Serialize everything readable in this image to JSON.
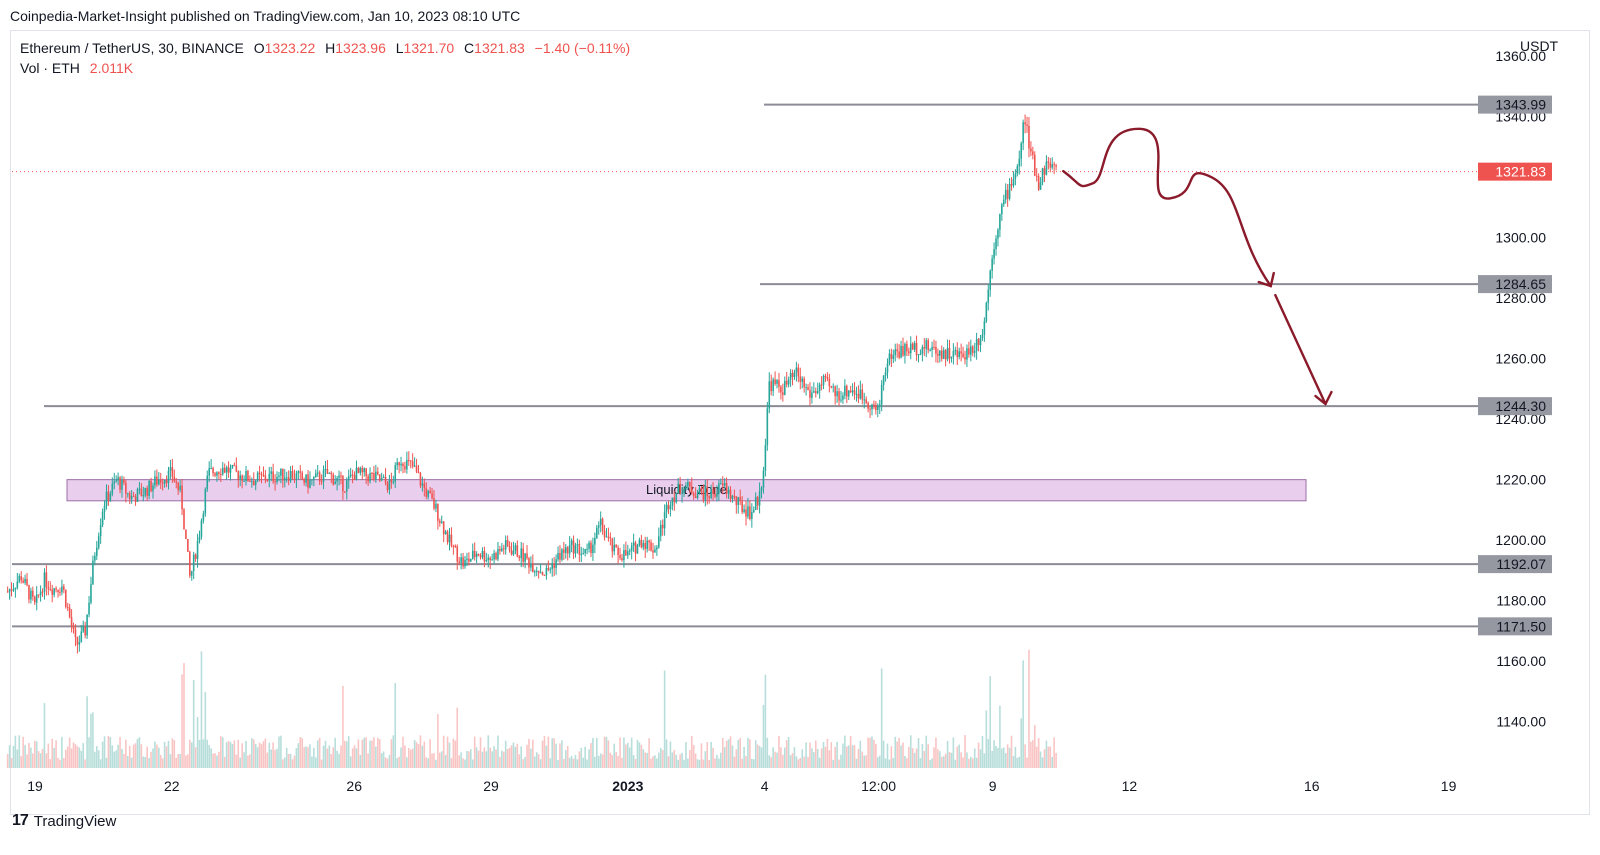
{
  "publisher_line": "Coinpedia-Market-Insight published on TradingView.com, Jan 10, 2023 08:10 UTC",
  "legend": {
    "symbol": "Ethereum / TetherUS, 30, BINANCE",
    "open_label": "O",
    "open": "1323.22",
    "high_label": "H",
    "high": "1323.96",
    "low_label": "L",
    "low": "1321.70",
    "close_label": "C",
    "close": "1321.83",
    "change": "−1.40 (−0.11%)",
    "vol_label": "Vol · ETH",
    "vol_value": "2.011K"
  },
  "currency": "USDT",
  "footer": {
    "brand": "TradingView"
  },
  "colors": {
    "up": "#26a69a",
    "down": "#ef5350",
    "line": "#8c8c96",
    "zone": "#e1bee7",
    "arrow": "#8b1a2b"
  },
  "chart_data": {
    "type": "candlestick",
    "title": "Ethereum / TetherUS, 30, BINANCE",
    "ylim": [
      1124,
      1368
    ],
    "y_ticks": [
      "1360.00",
      "1340.00",
      "1300.00",
      "1280.00",
      "1260.00",
      "1240.00",
      "1220.00",
      "1200.00",
      "1180.00",
      "1160.00",
      "1140.00"
    ],
    "x_ticks": [
      {
        "label": "19",
        "day": 0
      },
      {
        "label": "22",
        "day": 3
      },
      {
        "label": "26",
        "day": 7
      },
      {
        "label": "29",
        "day": 10
      },
      {
        "label": "2023",
        "day": 13
      },
      {
        "label": "4",
        "day": 16
      },
      {
        "label": "12:00",
        "day": 18.5
      },
      {
        "label": "9",
        "day": 21
      },
      {
        "label": "12",
        "day": 24
      },
      {
        "label": "16",
        "day": 28
      },
      {
        "label": "19",
        "day": 31
      }
    ],
    "levels": [
      {
        "label": "1343.99",
        "price": 1343.99
      },
      {
        "label": "1284.65",
        "price": 1284.65
      },
      {
        "label": "1244.30",
        "price": 1244.3
      },
      {
        "label": "1192.07",
        "price": 1192.07
      },
      {
        "label": "1171.50",
        "price": 1171.5
      }
    ],
    "last_price": {
      "label": "1321.83",
      "price": 1321.83
    },
    "zone": {
      "label": "Liquidity Zone",
      "low": 1213,
      "high": 1220
    },
    "price_path": [
      [
        -0.6,
        1183
      ],
      [
        -0.3,
        1188
      ],
      [
        0.0,
        1178
      ],
      [
        0.2,
        1187
      ],
      [
        0.4,
        1184
      ],
      [
        0.6,
        1185
      ],
      [
        0.9,
        1165
      ],
      [
        1.1,
        1170
      ],
      [
        1.3,
        1195
      ],
      [
        1.5,
        1212
      ],
      [
        1.8,
        1220
      ],
      [
        2.1,
        1214
      ],
      [
        2.4,
        1216
      ],
      [
        2.7,
        1220
      ],
      [
        3.0,
        1222
      ],
      [
        3.2,
        1215
      ],
      [
        3.4,
        1187
      ],
      [
        3.6,
        1202
      ],
      [
        3.8,
        1222
      ],
      [
        4.1,
        1224
      ],
      [
        4.4,
        1222
      ],
      [
        4.8,
        1220
      ],
      [
        5.2,
        1221
      ],
      [
        5.6,
        1222
      ],
      [
        6.0,
        1219
      ],
      [
        6.4,
        1222
      ],
      [
        6.8,
        1218
      ],
      [
        7.0,
        1222
      ],
      [
        7.4,
        1221
      ],
      [
        7.8,
        1218
      ],
      [
        8.0,
        1227
      ],
      [
        8.3,
        1224
      ],
      [
        8.5,
        1218
      ],
      [
        8.8,
        1210
      ],
      [
        9.1,
        1199
      ],
      [
        9.4,
        1192
      ],
      [
        9.7,
        1196
      ],
      [
        10.0,
        1194
      ],
      [
        10.3,
        1198
      ],
      [
        10.6,
        1196
      ],
      [
        10.9,
        1192
      ],
      [
        11.2,
        1189
      ],
      [
        11.5,
        1195
      ],
      [
        11.8,
        1198
      ],
      [
        12.1,
        1195
      ],
      [
        12.4,
        1205
      ],
      [
        12.7,
        1196
      ],
      [
        13.0,
        1195
      ],
      [
        13.3,
        1200
      ],
      [
        13.6,
        1197
      ],
      [
        13.9,
        1213
      ],
      [
        14.2,
        1218
      ],
      [
        14.5,
        1216
      ],
      [
        14.8,
        1215
      ],
      [
        15.1,
        1218
      ],
      [
        15.4,
        1212
      ],
      [
        15.7,
        1209
      ],
      [
        15.9,
        1215
      ],
      [
        16.0,
        1228
      ],
      [
        16.1,
        1252
      ],
      [
        16.4,
        1250
      ],
      [
        16.7,
        1255
      ],
      [
        17.0,
        1248
      ],
      [
        17.3,
        1252
      ],
      [
        17.6,
        1248
      ],
      [
        17.9,
        1250
      ],
      [
        18.2,
        1247
      ],
      [
        18.5,
        1242
      ],
      [
        18.6,
        1255
      ],
      [
        18.8,
        1262
      ],
      [
        19.1,
        1263
      ],
      [
        19.5,
        1264
      ],
      [
        19.9,
        1262
      ],
      [
        20.3,
        1261
      ],
      [
        20.6,
        1264
      ],
      [
        20.8,
        1270
      ],
      [
        20.9,
        1283
      ],
      [
        21.0,
        1296
      ],
      [
        21.2,
        1310
      ],
      [
        21.4,
        1318
      ],
      [
        21.6,
        1326
      ],
      [
        21.7,
        1341
      ],
      [
        21.8,
        1330
      ],
      [
        22.0,
        1318
      ],
      [
        22.2,
        1325
      ],
      [
        22.4,
        1322
      ]
    ],
    "volume_ylim": [
      0,
      1
    ],
    "forecast": {
      "curve": [
        [
          22.55,
          1322
        ],
        [
          23.2,
          1318
        ],
        [
          24.2,
          1336
        ],
        [
          24.9,
          1313
        ],
        [
          25.8,
          1320
        ],
        [
          27.1,
          1284
        ]
      ],
      "arrow2": [
        [
          27.2,
          1281
        ],
        [
          28.3,
          1245
        ]
      ]
    }
  }
}
